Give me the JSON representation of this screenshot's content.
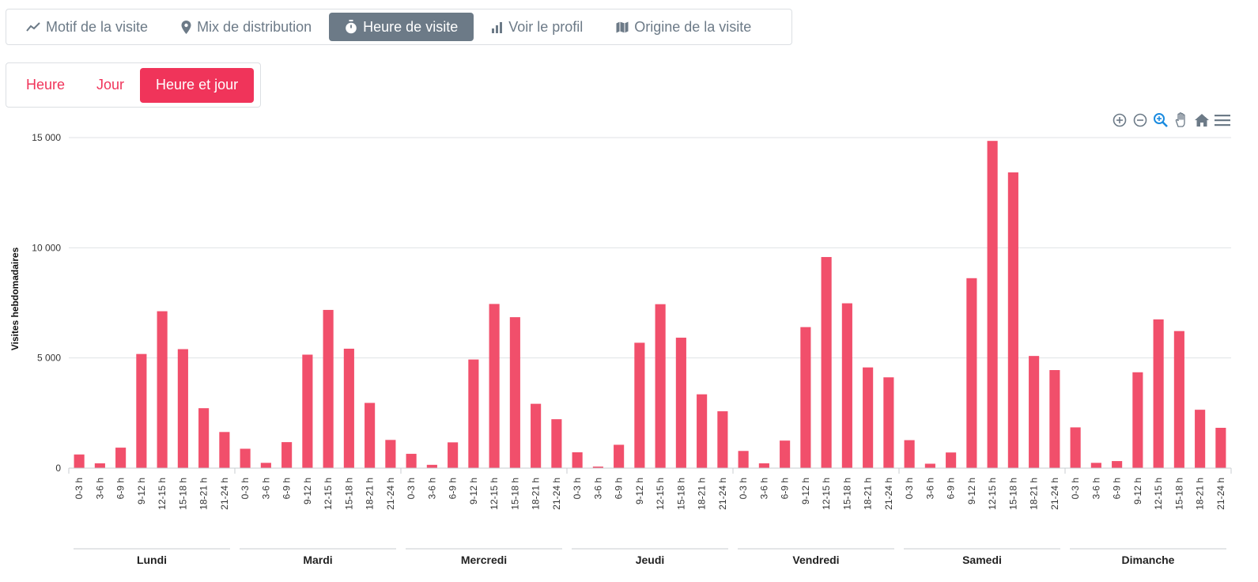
{
  "tabs": [
    {
      "label": "Motif de la visite",
      "icon": "trend-line-icon",
      "active": false
    },
    {
      "label": "Mix de distribution",
      "icon": "map-pin-icon",
      "active": false
    },
    {
      "label": "Heure de visite",
      "icon": "stopwatch-icon",
      "active": true
    },
    {
      "label": "Voir le profil",
      "icon": "bar-chart-icon",
      "active": false
    },
    {
      "label": "Origine de la visite",
      "icon": "map-icon",
      "active": false
    }
  ],
  "subtabs": [
    {
      "label": "Heure",
      "active": false
    },
    {
      "label": "Jour",
      "active": false
    },
    {
      "label": "Heure et jour",
      "active": true
    }
  ],
  "toolbar": [
    "zoom-in-icon",
    "zoom-out-icon",
    "selection-zoom-icon",
    "pan-hand-icon",
    "reset-home-icon",
    "menu-icon"
  ],
  "colors": {
    "accent": "#f0345a",
    "bar": "#f14f6b",
    "tab_active": "#6c7a87",
    "tab_text": "#6c7a87",
    "tool_active": "#1a8be0"
  },
  "chart_data": {
    "type": "bar",
    "ylabel": "Visites hebdomadaires",
    "ylim": [
      0,
      15000
    ],
    "yticks": [
      0,
      5000,
      10000,
      15000
    ],
    "ytick_labels": [
      "0",
      "5 000",
      "10 000",
      "15 000"
    ],
    "grid": true,
    "hour_categories": [
      "0-3 h",
      "3-6 h",
      "6-9 h",
      "9-12 h",
      "12-15 h",
      "15-18 h",
      "18-21 h",
      "21-24 h"
    ],
    "groups": [
      {
        "name": "Lundi",
        "values": [
          620,
          220,
          930,
          5180,
          7120,
          5400,
          2720,
          1640
        ]
      },
      {
        "name": "Mardi",
        "values": [
          880,
          240,
          1180,
          5150,
          7180,
          5420,
          2960,
          1280
        ]
      },
      {
        "name": "Mercredi",
        "values": [
          650,
          150,
          1170,
          4930,
          7450,
          6850,
          2920,
          2220
        ]
      },
      {
        "name": "Jeudi",
        "values": [
          720,
          70,
          1060,
          5690,
          7440,
          5920,
          3350,
          2580
        ]
      },
      {
        "name": "Vendredi",
        "values": [
          780,
          220,
          1250,
          6400,
          9580,
          7480,
          4570,
          4120
        ]
      },
      {
        "name": "Samedi",
        "values": [
          1270,
          200,
          710,
          8620,
          14850,
          13420,
          5090,
          4450
        ]
      },
      {
        "name": "Dimanche",
        "values": [
          1850,
          240,
          320,
          4350,
          6750,
          6220,
          2650,
          1830
        ]
      }
    ]
  }
}
